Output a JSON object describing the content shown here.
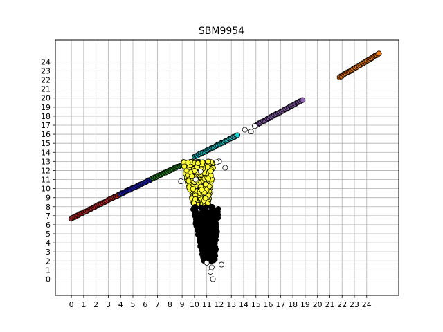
{
  "chart_data": {
    "type": "scatter",
    "title": "SBM9954",
    "xlabel": "",
    "ylabel": "",
    "xlim": [
      -1.3,
      26.6
    ],
    "ylim": [
      -1.8,
      26.4
    ],
    "grid": true,
    "x_ticks": [
      0,
      1,
      2,
      3,
      4,
      5,
      6,
      7,
      8,
      9,
      10,
      11,
      12,
      13,
      14,
      15,
      16,
      17,
      18,
      19,
      20,
      21,
      22,
      23,
      24
    ],
    "x_tick_labels": [
      "0",
      "1",
      "2",
      "3",
      "4",
      "5",
      "6",
      "7",
      "8",
      "9",
      "10",
      "11",
      "12",
      "13",
      "14",
      "15",
      "16",
      "17",
      "18",
      "19",
      "20",
      "21",
      "22",
      "23",
      "24"
    ],
    "y_ticks": [
      0,
      1,
      2,
      3,
      4,
      5,
      6,
      7,
      8,
      9,
      10,
      11,
      12,
      13,
      14,
      15,
      16,
      17,
      18,
      19,
      20,
      21,
      22,
      23,
      24
    ],
    "y_tick_labels": [
      "0",
      "1",
      "2",
      "3",
      "4",
      "5",
      "6",
      "7",
      "8",
      "9",
      "10",
      "11",
      "12",
      "13",
      "14",
      "15",
      "16",
      "17",
      "18",
      "19",
      "20",
      "21",
      "22",
      "23",
      "24"
    ],
    "series": [
      {
        "color": "#d62728",
        "shape": "line",
        "x_range": [
          0.0,
          4.0
        ],
        "y_range": [
          6.7,
          9.4
        ]
      },
      {
        "color": "#1f1fd6",
        "shape": "line",
        "x_range": [
          4.0,
          6.6
        ],
        "y_range": [
          9.4,
          11.1
        ]
      },
      {
        "color": "#2ca02c",
        "shape": "line",
        "x_range": [
          6.6,
          9.4
        ],
        "y_range": [
          11.1,
          12.9
        ]
      },
      {
        "color": "#17d4d4",
        "shape": "line",
        "x_range": [
          10.0,
          13.5
        ],
        "y_range": [
          13.5,
          15.9
        ]
      },
      {
        "color": "#9467bd",
        "shape": "line",
        "x_range": [
          15.0,
          18.8
        ],
        "y_range": [
          17.0,
          19.8
        ]
      },
      {
        "color": "#ff7f0e",
        "shape": "line",
        "x_range": [
          21.8,
          25.0
        ],
        "y_range": [
          22.3,
          24.9
        ]
      },
      {
        "color": "#ffff33",
        "shape": "cloud",
        "x_range": [
          9.0,
          11.6
        ],
        "y_range": [
          8.0,
          13.0
        ]
      },
      {
        "color": "#000000",
        "shape": "cloud",
        "x_range": [
          9.8,
          12.0
        ],
        "y_range": [
          2.0,
          8.0
        ]
      },
      {
        "color": "#ffffff",
        "shape": "outliers",
        "points": [
          [
            11.5,
            0.0
          ],
          [
            11.3,
            0.8
          ],
          [
            11.4,
            1.3
          ],
          [
            12.2,
            1.6
          ],
          [
            11.0,
            1.8
          ],
          [
            12.5,
            12.3
          ],
          [
            12.0,
            13.0
          ],
          [
            11.8,
            12.9
          ],
          [
            10.1,
            11.0
          ],
          [
            8.9,
            10.8
          ],
          [
            14.6,
            16.3
          ],
          [
            14.1,
            16.5
          ],
          [
            14.9,
            16.9
          ],
          [
            10.5,
            11.9
          ]
        ]
      }
    ]
  }
}
